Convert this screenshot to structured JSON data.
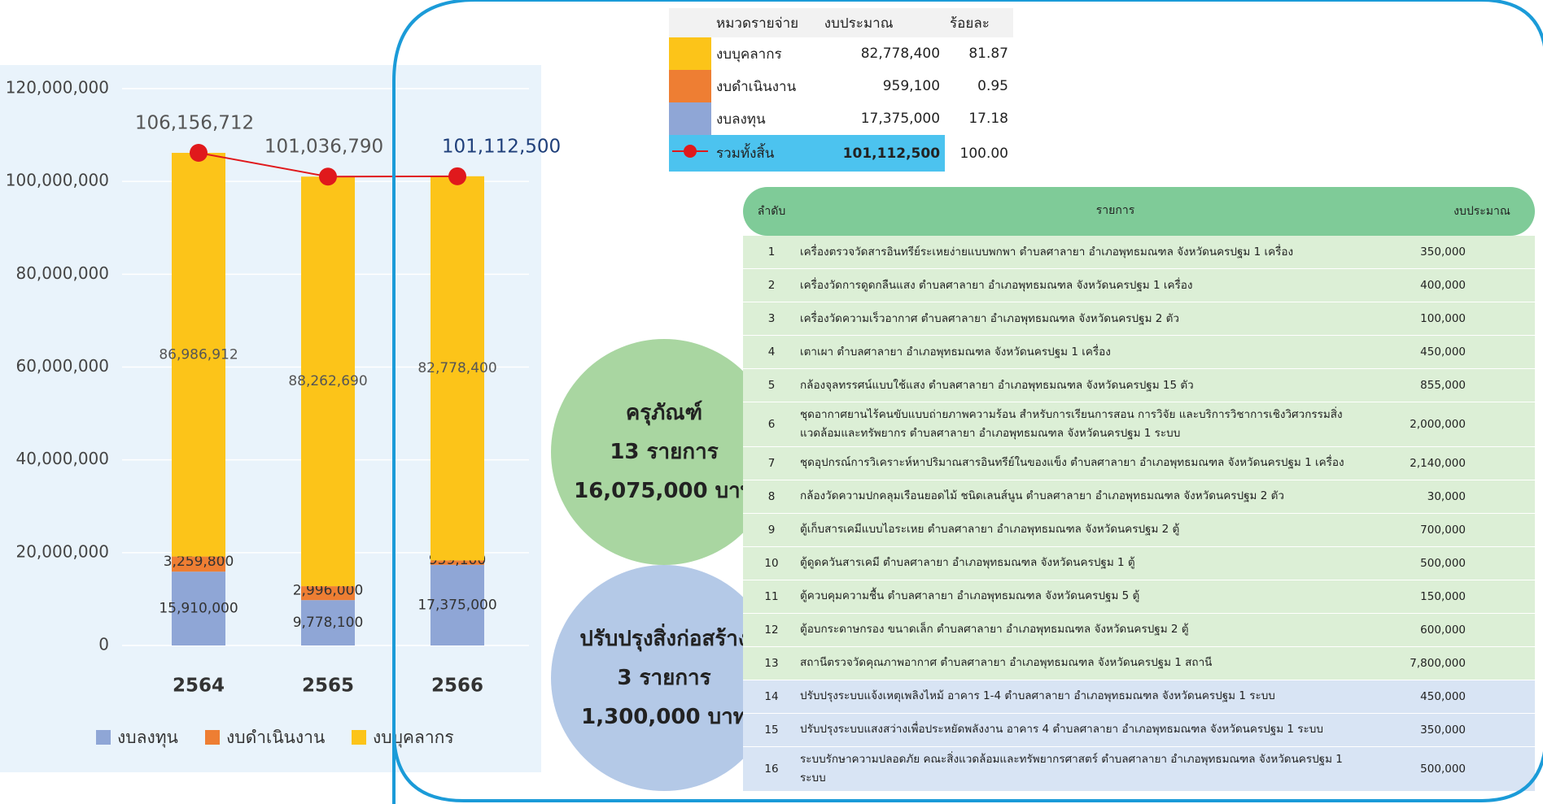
{
  "chart_data": {
    "type": "bar",
    "stacked": true,
    "categories": [
      "2564",
      "2565",
      "2566"
    ],
    "series": [
      {
        "name": "งบลงทุน",
        "color": "#8fa6d6",
        "values": [
          15910000,
          9778100,
          17375000
        ],
        "value_labels": [
          "15,910,000",
          "9,778,100",
          "17,375,000"
        ]
      },
      {
        "name": "งบดำเนินงาน",
        "color": "#ee7e33",
        "values": [
          3259800,
          2996000,
          959100
        ],
        "value_labels": [
          "3,259,800",
          "2,996,000",
          "959,100"
        ]
      },
      {
        "name": "งบบุคลากร",
        "color": "#fcc419",
        "values": [
          86986912,
          88262690,
          82778400
        ],
        "value_labels": [
          "86,986,912",
          "88,262,690",
          "82,778,400"
        ]
      }
    ],
    "totals": {
      "color": "#e0191c",
      "values": [
        106156712,
        101036790,
        101112500
      ],
      "value_labels": [
        "106,156,712",
        "101,036,790",
        "101,112,500"
      ]
    },
    "ylim": [
      0,
      120000000
    ],
    "yticks": [
      0,
      {
        "value": 20000000,
        "label": "20,000,000"
      },
      {
        "value": 40000000,
        "label": "40,000,000"
      },
      {
        "value": 60000000,
        "label": "60,000,000"
      },
      {
        "value": 80000000,
        "label": "80,000,000"
      },
      {
        "value": 100000000,
        "label": "100,000,000"
      },
      {
        "value": 120000000,
        "label": "120,000,000"
      }
    ],
    "grid": true,
    "legend": "bottom"
  },
  "summary_table": {
    "columns": [
      "หมวดรายจ่าย",
      "งบประมาณ",
      "ร้อยละ"
    ],
    "rows": [
      [
        "งบบุคลากร",
        "82,778,400",
        "81.87"
      ],
      [
        "งบดำเนินงาน",
        "959,100",
        "0.95"
      ],
      [
        "งบลงทุน",
        "17,375,000",
        "17.18"
      ],
      [
        "รวมทั้งสิ้น",
        "101,112,500",
        "100.00"
      ]
    ]
  },
  "groups": [
    {
      "title": "ครุภัณฑ์",
      "count": "13 รายการ",
      "amount": "16,075,000 บาท"
    },
    {
      "title": "ปรับปรุงสิ่งก่อสร้าง",
      "count": "3 รายการ",
      "amount": "1,300,000 บาท"
    }
  ],
  "items_table": {
    "columns": [
      "ลำดับ",
      "รายการ",
      "งบประมาณ"
    ],
    "rows": [
      [
        "1",
        "เครื่องตรวจวัดสารอินทรีย์ระเหยง่ายแบบพกพา ตำบลศาลายา อำเภอพุทธมณฑล จังหวัดนครปฐม 1 เครื่อง",
        "350,000"
      ],
      [
        "2",
        "เครื่องวัดการดูดกลืนแสง ตำบลศาลายา อำเภอพุทธมณฑล จังหวัดนครปฐม 1 เครื่อง",
        "400,000"
      ],
      [
        "3",
        "เครื่องวัดความเร็วอากาศ ตำบลศาลายา อำเภอพุทธมณฑล จังหวัดนครปฐม 2 ตัว",
        "100,000"
      ],
      [
        "4",
        "เตาเผา ตำบลศาลายา อำเภอพุทธมณฑล จังหวัดนครปฐม 1 เครื่อง",
        "450,000"
      ],
      [
        "5",
        "กล้องจุลทรรศน์แบบใช้แสง ตำบลศาลายา อำเภอพุทธมณฑล จังหวัดนครปฐม 15 ตัว",
        "855,000"
      ],
      [
        "6",
        "ชุดอากาศยานไร้คนขับแบบถ่ายภาพความร้อน สำหรับการเรียนการสอน การวิจัย และบริการวิชาการเชิงวิศวกรรมสิ่งแวดล้อมและทรัพยากร ตำบลศาลายา อำเภอพุทธมณฑล จังหวัดนครปฐม 1 ระบบ",
        "2,000,000"
      ],
      [
        "7",
        "ชุดอุปกรณ์การวิเคราะห์หาปริมาณสารอินทรีย์ในของแข็ง ตำบลศาลายา อำเภอพุทธมณฑล จังหวัดนครปฐม 1 เครื่อง",
        "2,140,000"
      ],
      [
        "8",
        "กล้องวัดความปกคลุมเรือนยอดไม้ ชนิดเลนส์นูน ตำบลศาลายา อำเภอพุทธมณฑล จังหวัดนครปฐม 2 ตัว",
        "30,000"
      ],
      [
        "9",
        "ตู้เก็บสารเคมีแบบไอระเหย ตำบลศาลายา อำเภอพุทธมณฑล จังหวัดนครปฐม 2 ตู้",
        "700,000"
      ],
      [
        "10",
        "ตู้ดูดควันสารเคมี ตำบลศาลายา อำเภอพุทธมณฑล จังหวัดนครปฐม 1 ตู้",
        "500,000"
      ],
      [
        "11",
        "ตู้ควบคุมความชื้น ตำบลศาลายา อำเภอพุทธมณฑล จังหวัดนครปฐม 5 ตู้",
        "150,000"
      ],
      [
        "12",
        "ตู้อบกระดาษกรอง ขนาดเล็ก ตำบลศาลายา อำเภอพุทธมณฑล จังหวัดนครปฐม 2 ตู้",
        "600,000"
      ],
      [
        "13",
        "สถานีตรวจวัดคุณภาพอากาศ ตำบลศาลายา อำเภอพุทธมณฑล จังหวัดนครปฐม 1 สถานี",
        "7,800,000"
      ],
      [
        "14",
        "ปรับปรุงระบบแจ้งเหตุเพลิงไหม้ อาคาร 1-4 ตำบลศาลายา อำเภอพุทธมณฑล จังหวัดนครปฐม 1 ระบบ",
        "450,000"
      ],
      [
        "15",
        "ปรับปรุงระบบแสงสว่างเพื่อประหยัดพลังงาน อาคาร 4 ตำบลศาลายา อำเภอพุทธมณฑล จังหวัดนครปฐม 1 ระบบ",
        "350,000"
      ],
      [
        "16",
        "ระบบรักษาความปลอดภัย คณะสิ่งแวดล้อมและทรัพยากรศาสตร์ ตำบลศาลายา อำเภอพุทธมณฑล จังหวัดนครปฐม 1 ระบบ",
        "500,000"
      ]
    ]
  }
}
